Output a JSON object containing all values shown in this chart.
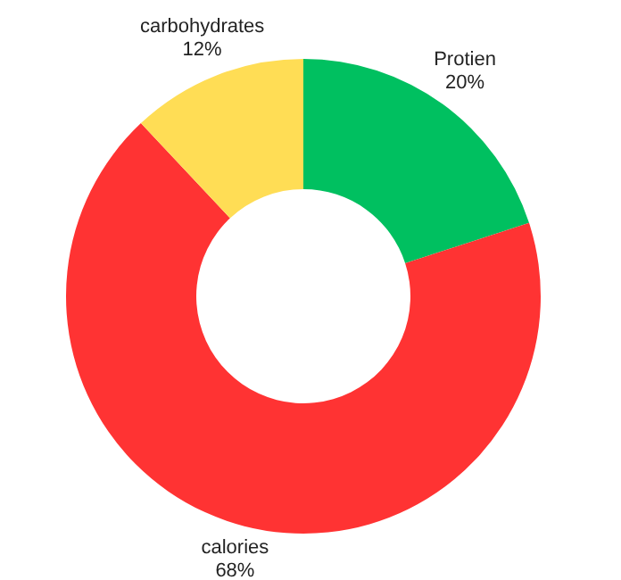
{
  "chart_data": {
    "type": "donut",
    "categories": [
      "Protien",
      "calories",
      "carbohydrates"
    ],
    "values": [
      20,
      68,
      12
    ],
    "value_labels": [
      "20%",
      "68%",
      "12%"
    ],
    "colors": [
      "#00c060",
      "#ff3333",
      "#ffdd55"
    ],
    "legend": false
  }
}
